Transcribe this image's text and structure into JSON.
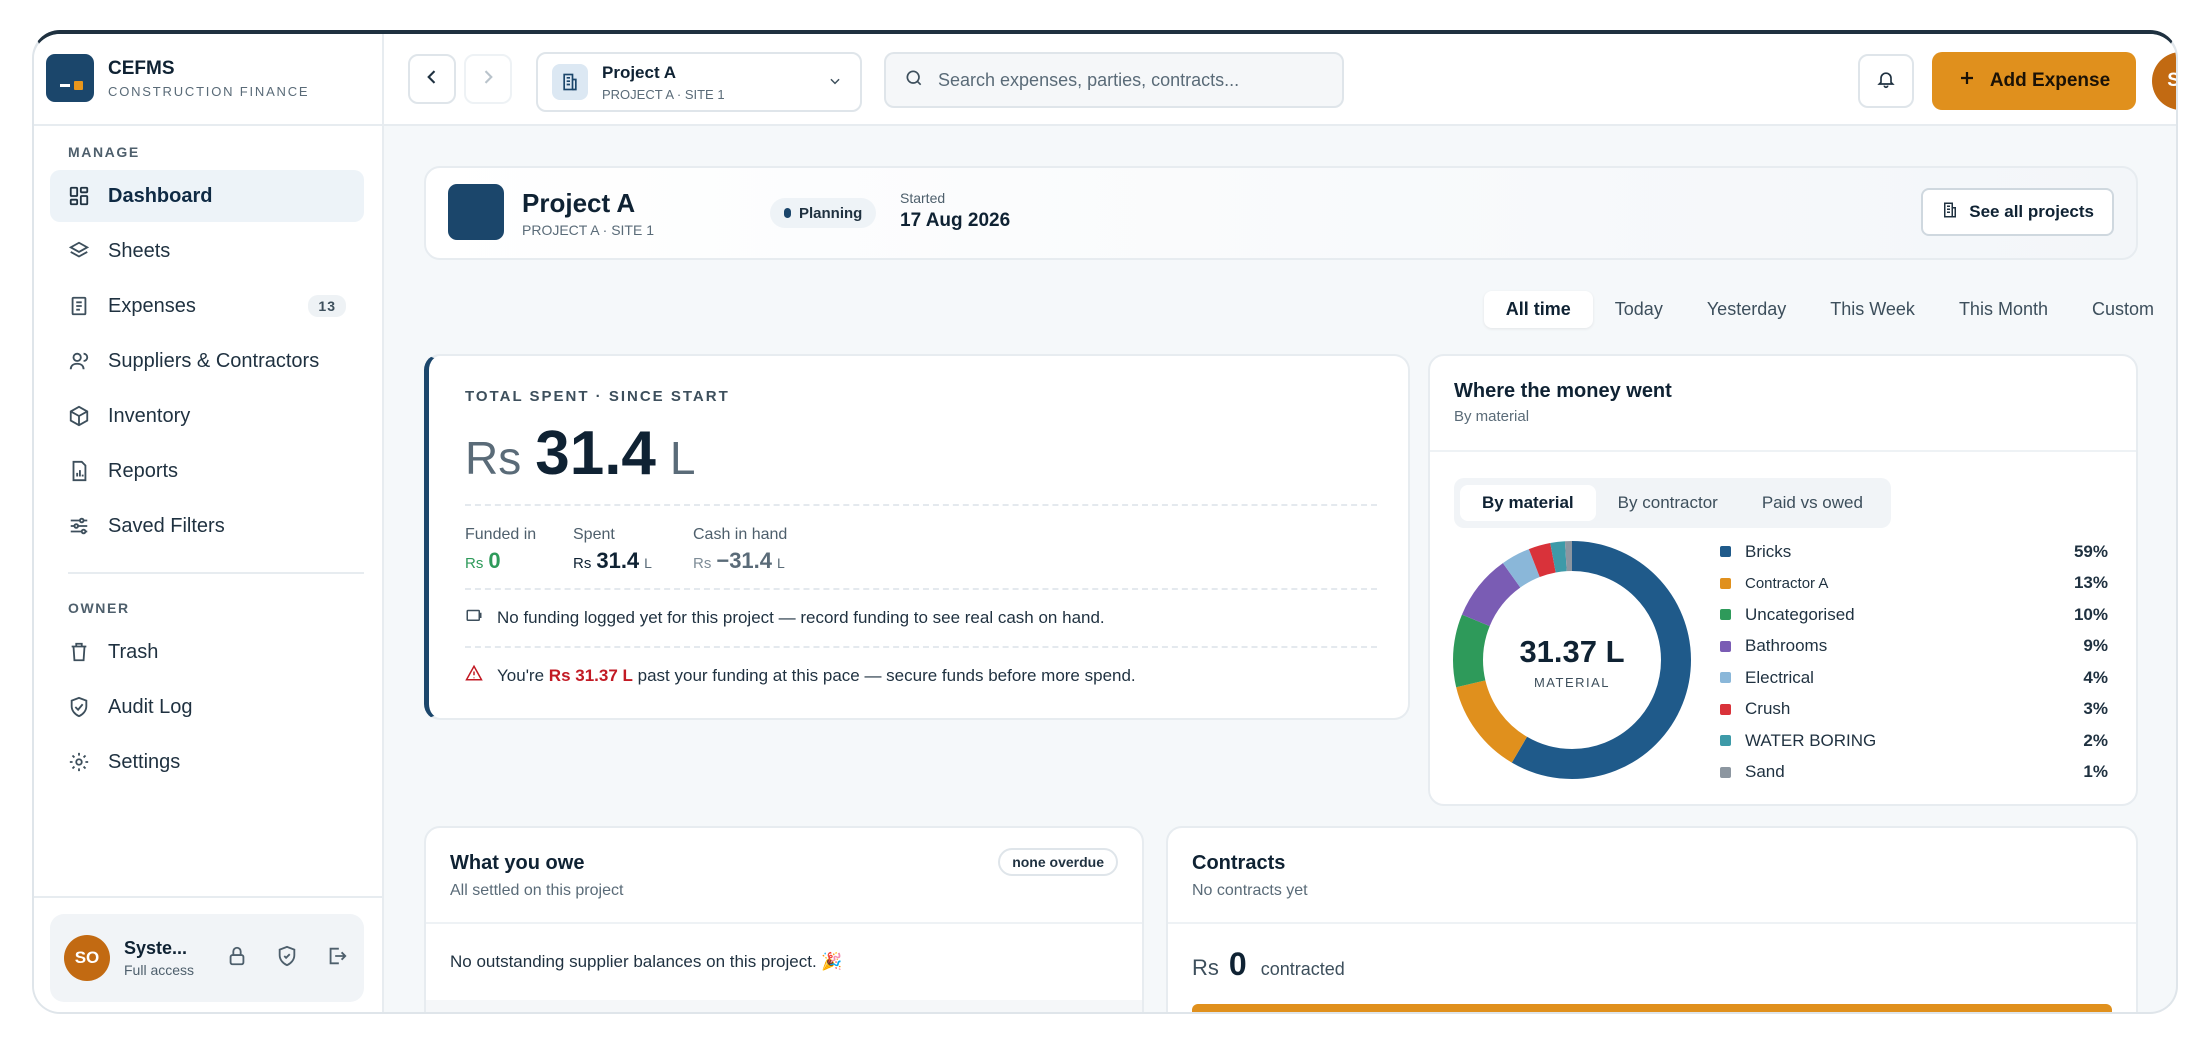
{
  "brand": {
    "name": "CEFMS",
    "subtitle": "CONSTRUCTION FINANCE"
  },
  "sidebar": {
    "manage_label": "MANAGE",
    "owner_label": "OWNER",
    "items": [
      {
        "label": "Dashboard",
        "icon": "grid-icon",
        "active": true
      },
      {
        "label": "Sheets",
        "icon": "layers-icon"
      },
      {
        "label": "Expenses",
        "icon": "receipt-icon",
        "badge": "13"
      },
      {
        "label": "Suppliers & Contractors",
        "icon": "users-icon"
      },
      {
        "label": "Inventory",
        "icon": "box-icon"
      },
      {
        "label": "Reports",
        "icon": "report-icon"
      },
      {
        "label": "Saved Filters",
        "icon": "filter-icon"
      }
    ],
    "owner_items": [
      {
        "label": "Trash",
        "icon": "trash-icon"
      },
      {
        "label": "Audit Log",
        "icon": "shield-check-icon"
      },
      {
        "label": "Settings",
        "icon": "gear-icon"
      }
    ],
    "user": {
      "initials": "SO",
      "name": "Syste...",
      "role": "Full access"
    }
  },
  "topbar": {
    "project_name": "Project A",
    "project_sub": "PROJECT A · SITE 1",
    "search_placeholder": "Search expenses, parties, contracts...",
    "add_label": "Add Expense",
    "avatar": "SO"
  },
  "banner": {
    "title": "Project A",
    "subtitle": "PROJECT A · SITE 1",
    "status": "Planning",
    "started_label": "Started",
    "started_date": "17 Aug 2026",
    "see_all": "See all projects"
  },
  "range_tabs": [
    "All time",
    "Today",
    "Yesterday",
    "This Week",
    "This Month",
    "Custom"
  ],
  "spent": {
    "eyebrow": "TOTAL SPENT · SINCE START",
    "currency": "Rs",
    "value": "31.4",
    "unit": "L",
    "funded_label": "Funded in",
    "funded_value": "0",
    "spent_label": "Spent",
    "spent_value": "31.4",
    "spent_unit": "L",
    "cash_label": "Cash in hand",
    "cash_value": "−31.4",
    "cash_unit": "L",
    "note_funding": "No funding logged yet for this project — record funding to see real cash on hand.",
    "note_warn_pre": "You're",
    "note_warn_amount": "Rs 31.37 L",
    "note_warn_post": "past your funding at this pace — secure funds before more spend."
  },
  "money": {
    "title": "Where the money went",
    "subtitle": "By material",
    "tabs": [
      "By material",
      "By contractor",
      "Paid vs owed"
    ],
    "center_value": "31.37 L",
    "center_label": "MATERIAL"
  },
  "chart_data": {
    "type": "pie",
    "categories": [
      "Bricks",
      "Contractor A",
      "Uncategorised",
      "Bathrooms",
      "Electrical",
      "Crush",
      "WATER BORING",
      "Sand"
    ],
    "values": [
      59,
      13,
      10,
      9,
      4,
      3,
      2,
      1
    ],
    "labels": [
      "59%",
      "13%",
      "10%",
      "9%",
      "4%",
      "3%",
      "2%",
      "1%"
    ],
    "colors": [
      "#1f5a8a",
      "#e0901d",
      "#2e9a5a",
      "#7a5cb4",
      "#8ab7d9",
      "#d9323a",
      "#3d9aa8",
      "#8c96a0"
    ]
  },
  "owe": {
    "title": "What you owe",
    "subtitle": "All settled on this project",
    "pill": "none overdue",
    "empty": "No outstanding supplier balances on this project. 🎉"
  },
  "contracts": {
    "title": "Contracts",
    "subtitle": "No contracts yet",
    "currency": "Rs",
    "value": "0",
    "text": "contracted"
  }
}
